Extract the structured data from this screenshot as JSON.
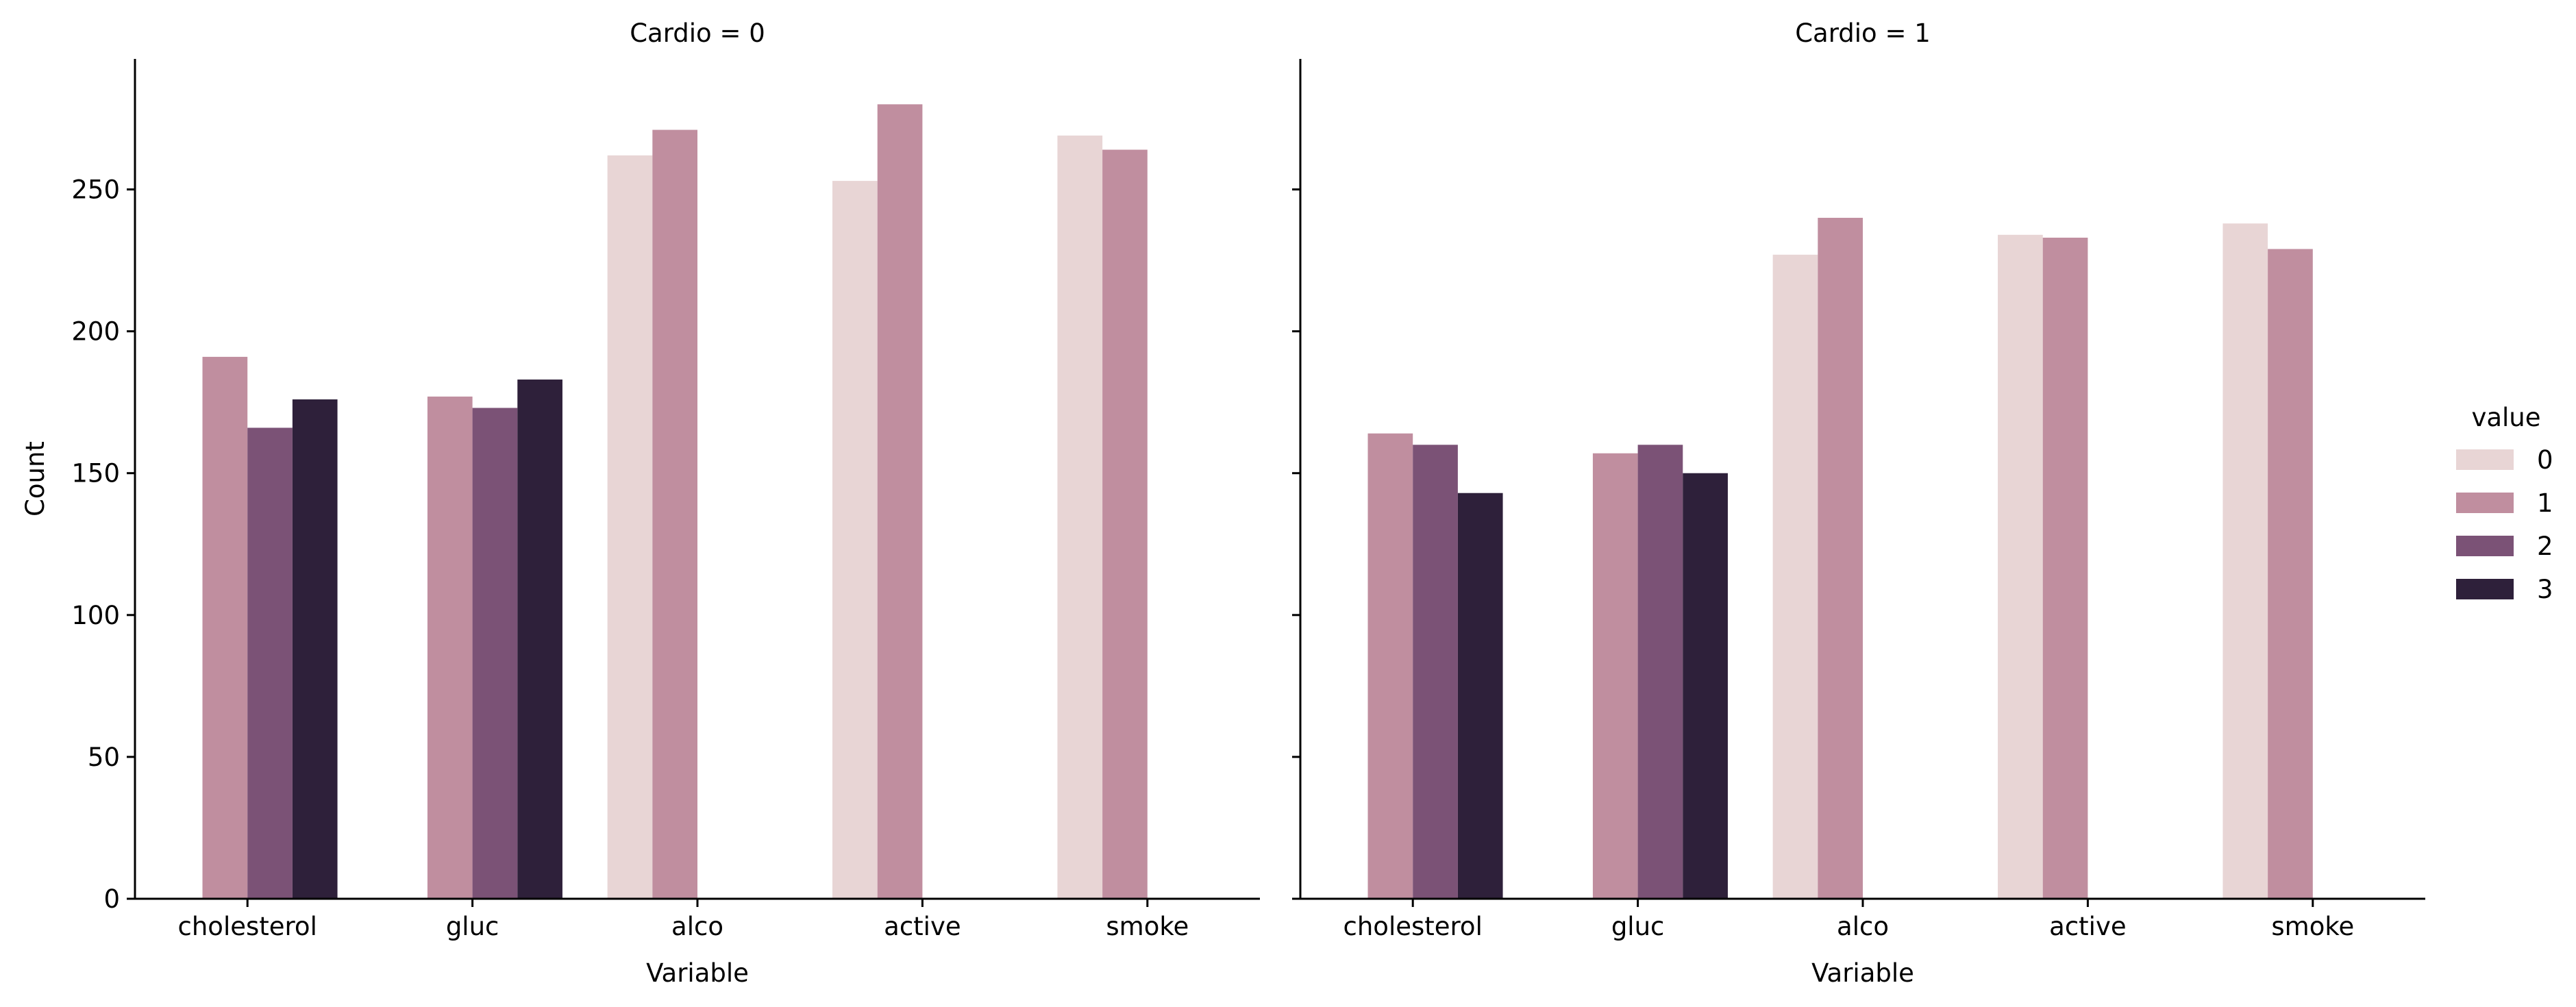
{
  "chart_data": {
    "type": "bar",
    "categories": [
      "cholesterol",
      "gluc",
      "alco",
      "active",
      "smoke"
    ],
    "hue_levels": [
      "0",
      "1",
      "2",
      "3"
    ],
    "colors": [
      "#e8d5d5",
      "#c08e9f",
      "#7b5276",
      "#2e203a"
    ],
    "ylabel": "Count",
    "xlabel": "Variable",
    "ylim": [
      0,
      296
    ],
    "yticks": [
      0,
      50,
      100,
      150,
      200,
      250
    ],
    "legend": {
      "title": "value",
      "entries": [
        "0",
        "1",
        "2",
        "3"
      ],
      "placement": "right"
    },
    "panels": [
      {
        "title": "Cardio = 0",
        "series": [
          {
            "name": "0",
            "values": [
              null,
              null,
              262,
              253,
              269
            ]
          },
          {
            "name": "1",
            "values": [
              191,
              177,
              271,
              280,
              264
            ]
          },
          {
            "name": "2",
            "values": [
              166,
              173,
              null,
              null,
              null
            ]
          },
          {
            "name": "3",
            "values": [
              176,
              183,
              null,
              null,
              null
            ]
          }
        ]
      },
      {
        "title": "Cardio = 1",
        "series": [
          {
            "name": "0",
            "values": [
              null,
              null,
              227,
              234,
              238
            ]
          },
          {
            "name": "1",
            "values": [
              164,
              157,
              240,
              233,
              229
            ]
          },
          {
            "name": "2",
            "values": [
              160,
              160,
              null,
              null,
              null
            ]
          },
          {
            "name": "3",
            "values": [
              143,
              150,
              null,
              null,
              null
            ]
          }
        ]
      }
    ]
  }
}
